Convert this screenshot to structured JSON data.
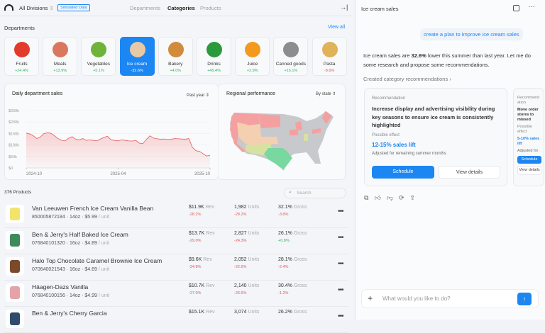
{
  "topbar": {
    "division": "All Divisions",
    "badge": "Simulated Data",
    "tabs": [
      "Departments",
      "Categories",
      "Products"
    ],
    "active_tab": "Categories"
  },
  "departments": {
    "title": "Departments",
    "view_all": "View all",
    "items": [
      {
        "name": "Fruits",
        "change": "+24.4%",
        "color": "#e23b2b"
      },
      {
        "name": "Meats",
        "change": "+13.9%",
        "color": "#d9785e"
      },
      {
        "name": "Vegetables",
        "change": "+5.1%",
        "color": "#6fb33a"
      },
      {
        "name": "Ice cream",
        "change": "-32.6%",
        "color": "#e8c9a5",
        "selected": true
      },
      {
        "name": "Bakery",
        "change": "+4.0%",
        "color": "#d28a3b"
      },
      {
        "name": "Drinks",
        "change": "+45.4%",
        "color": "#2b9a3c"
      },
      {
        "name": "Juice",
        "change": "+2.9%",
        "color": "#f39a1e"
      },
      {
        "name": "Canned goods",
        "change": "+16.1%",
        "color": "#8d8d8d"
      },
      {
        "name": "Pasta",
        "change": "-8.6%",
        "color": "#e0b25a",
        "negative": true
      }
    ]
  },
  "sales_chart": {
    "title": "Daily department sales",
    "range": "Past year"
  },
  "chart_data": {
    "type": "area",
    "title": "Daily department sales",
    "ylabel": "",
    "xlabel": "",
    "ylim": [
      0,
      250000
    ],
    "yticks": [
      "$250k",
      "$200k",
      "$150k",
      "$100k",
      "$50k",
      "$0"
    ],
    "xticks": [
      "2024-10",
      "2025-04",
      "2025-10"
    ],
    "values": [
      152,
      148,
      140,
      128,
      135,
      150,
      153,
      151,
      140,
      128,
      120,
      118,
      130,
      136,
      125,
      122,
      128,
      120,
      122,
      120,
      118,
      126,
      133,
      138,
      122,
      120,
      118,
      122,
      120,
      118,
      117,
      120,
      108,
      106,
      125,
      140,
      130,
      127,
      125,
      126,
      124,
      125,
      128,
      127,
      126,
      125,
      128,
      90,
      75,
      72,
      62,
      52,
      55
    ]
  },
  "regional": {
    "title": "Regional performance",
    "group": "By state"
  },
  "products": {
    "count": "376 Products",
    "search_placeholder": "Search",
    "rev_label": "Rev",
    "units_label": "Units",
    "gross_label": "Gross",
    "items": [
      {
        "name": "Van Leeuwen French Ice Cream Vanilla Bean",
        "upc": "850005872184",
        "size": "14oz",
        "price": "$5.99",
        "unit": "/ unit",
        "rev": "$11.9K",
        "rev_d": "-28.2%",
        "units": "1,982",
        "units_d": "-28.2%",
        "gross": "32.1%",
        "gross_d": "-3.8%",
        "color": "#f2e36b"
      },
      {
        "name": "Ben & Jerry's Half Baked Ice Cream",
        "upc": "076840101320",
        "size": "16oz",
        "price": "$4.89",
        "unit": "/ unit",
        "rev": "$13.7K",
        "rev_d": "-29.0%",
        "units": "2,827",
        "units_d": "-24.3%",
        "gross": "26.1%",
        "gross_d": "+0.8%",
        "color": "#3d8a5a",
        "gross_pos": true
      },
      {
        "name": "Halo Top Chocolate Caramel Brownie Ice Cream",
        "upc": "070640021543",
        "size": "16oz",
        "price": "$4.69",
        "unit": "/ unit",
        "rev": "$9.6K",
        "rev_d": "-24.8%",
        "units": "2,052",
        "units_d": "-22.6%",
        "gross": "28.1%",
        "gross_d": "-2.4%",
        "color": "#7a4a2a"
      },
      {
        "name": "Häagen-Dazs Vanilla",
        "upc": "076840100156",
        "size": "14oz",
        "price": "$4.99",
        "unit": "/ unit",
        "rev": "$10.7K",
        "rev_d": "-27.0%",
        "units": "2,140",
        "units_d": "-26.6%",
        "gross": "30.4%",
        "gross_d": "-1.2%",
        "color": "#e4a3a8"
      },
      {
        "name": "Ben & Jerry's Cherry Garcia",
        "upc": "",
        "size": "",
        "price": "",
        "unit": "",
        "rev": "$15.1K",
        "rev_d": "",
        "units": "3,074",
        "units_d": "",
        "gross": "26.2%",
        "gross_d": "",
        "color": "#2f4d6a"
      }
    ]
  },
  "chat": {
    "title": "Ice cream sales",
    "user_msg": "create a plan to improve ice cream sales",
    "reply_pre": "Ice cream sales are ",
    "reply_bold": "32.6%",
    "reply_post": " lower this summer than last year. Let me do some research and propose some recommendations.",
    "link": "Created category recommendations",
    "recs": [
      {
        "label": "Recommendation",
        "text": "Increase display and advertising visibility during key seasons to ensure ice cream is consistently highlighted",
        "effect_label": "Possible effect",
        "effect": "12-15% sales lift",
        "note": "Adjusted for remaining summer months",
        "schedule": "Schedule",
        "details": "View details"
      },
      {
        "label": "Recommendation",
        "text": "Move order stores to missed",
        "effect_label": "Possible effect",
        "effect": "5-10% sales lift",
        "note": "Adjusted for",
        "schedule": "Schedule",
        "details": "View details"
      }
    ],
    "input_placeholder": "What would you like to do?"
  },
  "colors": {
    "accent": "#1c86f2",
    "negative": "#e05a5a",
    "positive": "#2fb760"
  }
}
